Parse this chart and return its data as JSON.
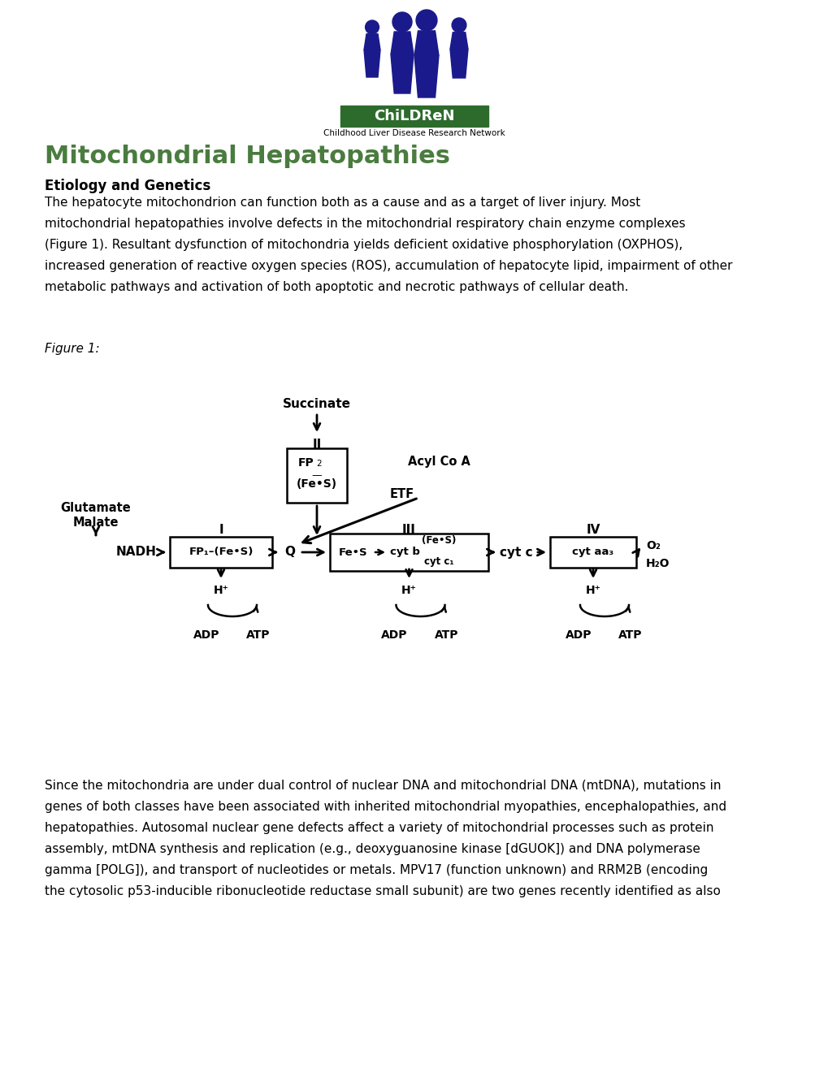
{
  "title": "Mitochondrial Hepatopathies",
  "title_color": "#4a7c3f",
  "subtitle": "Etiology and Genetics",
  "bg_color": "#ffffff",
  "logo_banner_color": "#2d6b2d",
  "logo_text": "ChiLDReN",
  "logo_subtitle": "Childhood Liver Disease Research Network",
  "silhouette_color": "#1a1a8c",
  "figure_label": "Figure 1:",
  "para1_lines": [
    "The hepatocyte mitochondrion can function both as a cause and as a target of liver injury. Most",
    "mitochondrial hepatopathies involve defects in the mitochondrial respiratory chain enzyme complexes",
    "(Figure 1). Resultant dysfunction of mitochondria yields deficient oxidative phosphorylation (OXPHOS),",
    "increased generation of reactive oxygen species (ROS), accumulation of hepatocyte lipid, impairment of other",
    "metabolic pathways and activation of both apoptotic and necrotic pathways of cellular death."
  ],
  "para2_lines": [
    "Since the mitochondria are under dual control of nuclear DNA and mitochondrial DNA (mtDNA), mutations in",
    "genes of both classes have been associated with inherited mitochondrial myopathies, encephalopathies, and",
    "hepatopathies. Autosomal nuclear gene defects affect a variety of mitochondrial processes such as protein",
    "assembly, mtDNA synthesis and replication (e.g., deoxyguanosine kinase [dGUOK]) and DNA polymerase",
    "gamma [POLG]), and transport of nucleotides or metals. MPV17 (function unknown) and RRM2B (encoding",
    "the cytosolic p53-inducible ribonucleotide reductase small subunit) are two genes recently identified as also"
  ]
}
